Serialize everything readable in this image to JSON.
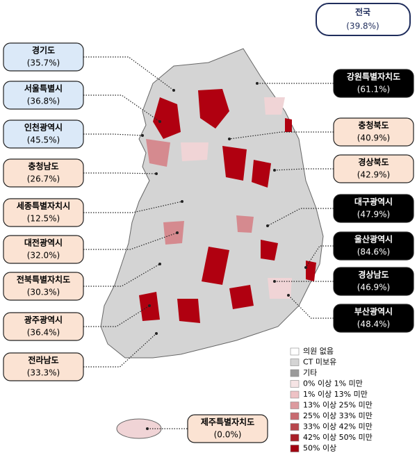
{
  "national": {
    "name": "전국",
    "value": "(39.8%)"
  },
  "regions": [
    {
      "name": "경기도",
      "value": "(35.7%)"
    },
    {
      "name": "서울특별시",
      "value": "(36.8%)"
    },
    {
      "name": "인천광역시",
      "value": "(45.5%)"
    },
    {
      "name": "충청남도",
      "value": "(26.7%)"
    },
    {
      "name": "세종특별자치시",
      "value": "(12.5%)"
    },
    {
      "name": "대전광역시",
      "value": "(32.0%)"
    },
    {
      "name": "전북특별자치도",
      "value": "(30.3%)"
    },
    {
      "name": "광주광역시",
      "value": "(36.4%)"
    },
    {
      "name": "전라남도",
      "value": "(33.3%)"
    },
    {
      "name": "강원특별자치도",
      "value": "(61.1%)"
    },
    {
      "name": "충청북도",
      "value": "(40.9%)"
    },
    {
      "name": "경상북도",
      "value": "(42.9%)"
    },
    {
      "name": "대구광역시",
      "value": "(47.9%)"
    },
    {
      "name": "울산광역시",
      "value": "(84.6%)"
    },
    {
      "name": "경상남도",
      "value": "(46.9%)"
    },
    {
      "name": "부산광역시",
      "value": "(48.4%)"
    },
    {
      "name": "제주특별자치도",
      "value": "(0.0%)"
    }
  ],
  "legend": [
    "의원 없음",
    "CT 미보유",
    "기타",
    "0% 이상 1% 미만",
    "1% 이상 13% 미만",
    "13% 이상 25% 미만",
    "25% 이상 33% 미만",
    "33% 이상 42% 미만",
    "42% 이상 50% 미만",
    "50% 이상"
  ]
}
